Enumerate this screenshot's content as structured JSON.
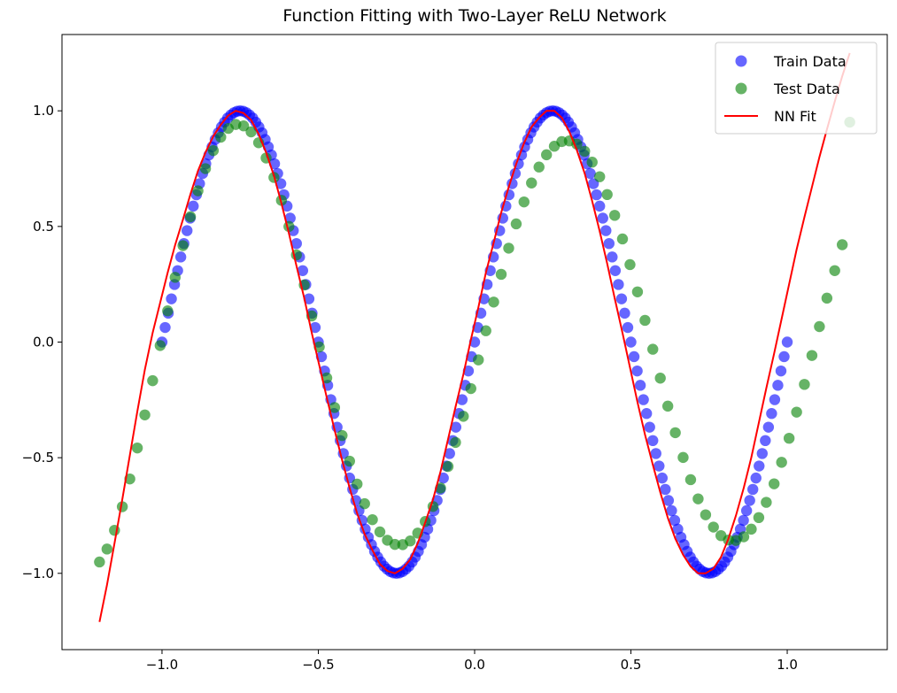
{
  "chart_data": {
    "type": "scatter",
    "title": "Function Fitting with Two-Layer ReLU Network",
    "xlabel": "",
    "ylabel": "",
    "xlim": [
      -1.32,
      1.32
    ],
    "ylim": [
      -1.33,
      1.33
    ],
    "x_ticks": [
      -1.0,
      -0.5,
      0.0,
      0.5,
      1.0
    ],
    "y_ticks": [
      -1.0,
      -0.5,
      0.0,
      0.5,
      1.0
    ],
    "x_tick_labels": [
      "−1.0",
      "−0.5",
      "0.0",
      "0.5",
      "1.0"
    ],
    "y_tick_labels": [
      "−1.0",
      "−0.5",
      "0.0",
      "0.5",
      "1.0"
    ],
    "grid": false,
    "legend_position": "top-right",
    "function": "sin(2πx)",
    "series": [
      {
        "name": "Train Data",
        "kind": "scatter",
        "color": "#0000ff",
        "x_range": [
          -1.0,
          1.0
        ],
        "count": 200,
        "x": [
          -1.0,
          -0.99,
          -0.98,
          -0.97,
          -0.96,
          -0.95,
          -0.94,
          -0.93,
          -0.92,
          -0.91,
          -0.9,
          -0.89,
          -0.88,
          -0.87,
          -0.86,
          -0.85,
          -0.84,
          -0.83,
          -0.82,
          -0.81,
          -0.8,
          -0.79,
          -0.78,
          -0.77,
          -0.76,
          -0.75,
          -0.74,
          -0.73,
          -0.72,
          -0.71,
          -0.7,
          -0.69,
          -0.68,
          -0.67,
          -0.66,
          -0.65,
          -0.64,
          -0.63,
          -0.62,
          -0.61,
          -0.6,
          -0.59,
          -0.58,
          -0.57,
          -0.56,
          -0.55,
          -0.54,
          -0.53,
          -0.52,
          -0.51,
          -0.5,
          -0.49,
          -0.48,
          -0.47,
          -0.46,
          -0.45,
          -0.44,
          -0.43,
          -0.42,
          -0.41,
          -0.4,
          -0.39,
          -0.38,
          -0.37,
          -0.36,
          -0.35,
          -0.34,
          -0.33,
          -0.32,
          -0.31,
          -0.3,
          -0.29,
          -0.28,
          -0.27,
          -0.26,
          -0.25,
          -0.24,
          -0.23,
          -0.22,
          -0.21,
          -0.2,
          -0.19,
          -0.18,
          -0.17,
          -0.16,
          -0.15,
          -0.14,
          -0.13,
          -0.12,
          -0.11,
          -0.1,
          -0.09,
          -0.08,
          -0.07,
          -0.06,
          -0.05,
          -0.04,
          -0.03,
          -0.02,
          -0.01,
          0.0,
          0.01,
          0.02,
          0.03,
          0.04,
          0.05,
          0.06,
          0.07,
          0.08,
          0.09,
          0.1,
          0.11,
          0.12,
          0.13,
          0.14,
          0.15,
          0.16,
          0.17,
          0.18,
          0.19,
          0.2,
          0.21,
          0.22,
          0.23,
          0.24,
          0.25,
          0.26,
          0.27,
          0.28,
          0.29,
          0.3,
          0.31,
          0.32,
          0.33,
          0.34,
          0.35,
          0.36,
          0.37,
          0.38,
          0.39,
          0.4,
          0.41,
          0.42,
          0.43,
          0.44,
          0.45,
          0.46,
          0.47,
          0.48,
          0.49,
          0.5,
          0.51,
          0.52,
          0.53,
          0.54,
          0.55,
          0.56,
          0.57,
          0.58,
          0.59,
          0.6,
          0.61,
          0.62,
          0.63,
          0.64,
          0.65,
          0.66,
          0.67,
          0.68,
          0.69,
          0.7,
          0.71,
          0.72,
          0.73,
          0.74,
          0.75,
          0.76,
          0.77,
          0.78,
          0.79,
          0.8,
          0.81,
          0.82,
          0.83,
          0.84,
          0.85,
          0.86,
          0.87,
          0.88,
          0.89,
          0.9,
          0.91,
          0.92,
          0.93,
          0.94,
          0.95,
          0.96,
          0.97,
          0.98,
          0.99,
          1.0
        ],
        "values": [
          0.0,
          0.063,
          0.125,
          0.187,
          0.249,
          0.309,
          0.368,
          0.426,
          0.482,
          0.536,
          0.588,
          0.637,
          0.685,
          0.729,
          0.771,
          0.809,
          0.844,
          0.876,
          0.905,
          0.93,
          0.951,
          0.969,
          0.982,
          0.992,
          0.998,
          1.0,
          0.998,
          0.992,
          0.982,
          0.969,
          0.951,
          0.93,
          0.905,
          0.876,
          0.844,
          0.809,
          0.771,
          0.729,
          0.685,
          0.637,
          0.588,
          0.536,
          0.482,
          0.426,
          0.368,
          0.309,
          0.249,
          0.187,
          0.125,
          0.063,
          0.0,
          -0.063,
          -0.125,
          -0.187,
          -0.249,
          -0.309,
          -0.368,
          -0.426,
          -0.482,
          -0.536,
          -0.588,
          -0.637,
          -0.685,
          -0.729,
          -0.771,
          -0.809,
          -0.844,
          -0.876,
          -0.905,
          -0.93,
          -0.951,
          -0.969,
          -0.982,
          -0.992,
          -0.998,
          -1.0,
          -0.998,
          -0.992,
          -0.982,
          -0.969,
          -0.951,
          -0.93,
          -0.905,
          -0.876,
          -0.844,
          -0.809,
          -0.771,
          -0.729,
          -0.685,
          -0.637,
          -0.588,
          -0.536,
          -0.482,
          -0.426,
          -0.368,
          -0.309,
          -0.249,
          -0.187,
          -0.125,
          -0.063,
          0.0,
          0.063,
          0.125,
          0.187,
          0.249,
          0.309,
          0.368,
          0.426,
          0.482,
          0.536,
          0.588,
          0.637,
          0.685,
          0.729,
          0.771,
          0.809,
          0.844,
          0.876,
          0.905,
          0.93,
          0.951,
          0.969,
          0.982,
          0.992,
          0.998,
          1.0,
          0.998,
          0.992,
          0.982,
          0.969,
          0.951,
          0.93,
          0.905,
          0.876,
          0.844,
          0.809,
          0.771,
          0.729,
          0.685,
          0.637,
          0.588,
          0.536,
          0.482,
          0.426,
          0.368,
          0.309,
          0.249,
          0.187,
          0.125,
          0.063,
          0.0,
          -0.063,
          -0.125,
          -0.187,
          -0.249,
          -0.309,
          -0.368,
          -0.426,
          -0.482,
          -0.536,
          -0.588,
          -0.637,
          -0.685,
          -0.729,
          -0.771,
          -0.809,
          -0.844,
          -0.876,
          -0.905,
          -0.93,
          -0.951,
          -0.969,
          -0.982,
          -0.992,
          -0.998,
          -1.0,
          -0.998,
          -0.992,
          -0.982,
          -0.969,
          -0.951,
          -0.93,
          -0.905,
          -0.876,
          -0.844,
          -0.809,
          -0.771,
          -0.729,
          -0.685,
          -0.637,
          -0.588,
          -0.536,
          -0.482,
          -0.426,
          -0.368,
          -0.309,
          -0.249,
          -0.187,
          -0.125,
          -0.063,
          0.0
        ]
      },
      {
        "name": "Test Data",
        "kind": "scatter",
        "color": "#008000",
        "x_range": [
          -1.2,
          1.2
        ],
        "count": 100,
        "x": [
          -1.2,
          -1.176,
          -1.152,
          -1.127,
          -1.103,
          -1.079,
          -1.055,
          -1.03,
          -1.006,
          -0.982,
          -0.958,
          -0.933,
          -0.909,
          -0.885,
          -0.861,
          -0.836,
          -0.812,
          -0.788,
          -0.764,
          -0.739,
          -0.715,
          -0.691,
          -0.667,
          -0.642,
          -0.618,
          -0.594,
          -0.57,
          -0.545,
          -0.521,
          -0.497,
          -0.473,
          -0.448,
          -0.424,
          -0.4,
          -0.376,
          -0.352,
          -0.327,
          -0.303,
          -0.279,
          -0.255,
          -0.23,
          -0.206,
          -0.182,
          -0.158,
          -0.133,
          -0.109,
          -0.085,
          -0.061,
          -0.036,
          -0.012,
          0.012,
          0.036,
          0.061,
          0.085,
          0.109,
          0.133,
          0.158,
          0.182,
          0.206,
          0.23,
          0.255,
          0.279,
          0.303,
          0.327,
          0.352,
          0.376,
          0.4,
          0.424,
          0.448,
          0.473,
          0.497,
          0.521,
          0.545,
          0.57,
          0.594,
          0.618,
          0.642,
          0.667,
          0.691,
          0.715,
          0.739,
          0.764,
          0.788,
          0.812,
          0.836,
          0.861,
          0.885,
          0.909,
          0.933,
          0.958,
          0.982,
          1.006,
          1.03,
          1.055,
          1.079,
          1.103,
          1.127,
          1.152,
          1.176,
          1.2
        ],
        "values": [
          -0.951,
          -0.895,
          -0.814,
          -0.712,
          -0.592,
          -0.458,
          -0.315,
          -0.167,
          -0.015,
          0.135,
          0.28,
          0.417,
          0.542,
          0.654,
          0.75,
          0.828,
          0.886,
          0.924,
          0.941,
          0.935,
          0.909,
          0.862,
          0.796,
          0.712,
          0.613,
          0.5,
          0.377,
          0.247,
          0.113,
          -0.021,
          -0.155,
          -0.283,
          -0.404,
          -0.515,
          -0.614,
          -0.699,
          -0.768,
          -0.821,
          -0.857,
          -0.875,
          -0.876,
          -0.86,
          -0.826,
          -0.776,
          -0.711,
          -0.631,
          -0.538,
          -0.434,
          -0.321,
          -0.201,
          -0.077,
          0.049,
          0.173,
          0.293,
          0.406,
          0.511,
          0.606,
          0.688,
          0.757,
          0.81,
          0.847,
          0.867,
          0.87,
          0.856,
          0.825,
          0.778,
          0.715,
          0.638,
          0.548,
          0.446,
          0.335,
          0.217,
          0.094,
          -0.031,
          -0.156,
          -0.277,
          -0.392,
          -0.499,
          -0.595,
          -0.678,
          -0.747,
          -0.8,
          -0.837,
          -0.856,
          -0.858,
          -0.842,
          -0.809,
          -0.759,
          -0.693,
          -0.613,
          -0.52,
          -0.416,
          -0.303,
          -0.183,
          -0.058,
          0.067,
          0.19,
          0.309,
          0.421,
          0.951
        ]
      },
      {
        "name": "NN Fit",
        "kind": "line",
        "color": "#ff0000",
        "x": [
          -1.2,
          -1.176,
          -1.152,
          -1.127,
          -1.103,
          -1.079,
          -1.055,
          -1.03,
          -1.006,
          -0.982,
          -0.958,
          -0.933,
          -0.909,
          -0.885,
          -0.861,
          -0.836,
          -0.812,
          -0.788,
          -0.764,
          -0.739,
          -0.715,
          -0.691,
          -0.667,
          -0.642,
          -0.618,
          -0.594,
          -0.57,
          -0.545,
          -0.521,
          -0.497,
          -0.473,
          -0.448,
          -0.424,
          -0.4,
          -0.376,
          -0.352,
          -0.327,
          -0.303,
          -0.279,
          -0.255,
          -0.23,
          -0.206,
          -0.182,
          -0.158,
          -0.133,
          -0.109,
          -0.085,
          -0.061,
          -0.036,
          -0.012,
          0.012,
          0.036,
          0.061,
          0.085,
          0.109,
          0.133,
          0.158,
          0.182,
          0.206,
          0.23,
          0.255,
          0.279,
          0.303,
          0.327,
          0.352,
          0.376,
          0.4,
          0.424,
          0.448,
          0.473,
          0.497,
          0.521,
          0.545,
          0.57,
          0.594,
          0.618,
          0.642,
          0.667,
          0.691,
          0.715,
          0.739,
          0.764,
          0.788,
          0.812,
          0.836,
          0.861,
          0.885,
          0.909,
          0.933,
          0.958,
          0.982,
          1.006,
          1.03,
          1.055,
          1.079,
          1.103,
          1.127,
          1.152,
          1.176,
          1.2
        ],
        "values": [
          -1.21,
          -1.05,
          -0.87,
          -0.68,
          -0.49,
          -0.3,
          -0.12,
          0.04,
          0.17,
          0.3,
          0.42,
          0.53,
          0.64,
          0.74,
          0.82,
          0.89,
          0.94,
          0.98,
          1.0,
          0.99,
          0.96,
          0.9,
          0.82,
          0.72,
          0.6,
          0.47,
          0.33,
          0.19,
          0.04,
          -0.1,
          -0.24,
          -0.38,
          -0.51,
          -0.63,
          -0.74,
          -0.83,
          -0.9,
          -0.96,
          -0.99,
          -1.0,
          -0.98,
          -0.94,
          -0.87,
          -0.78,
          -0.68,
          -0.56,
          -0.42,
          -0.28,
          -0.14,
          0.01,
          0.15,
          0.3,
          0.43,
          0.56,
          0.67,
          0.77,
          0.86,
          0.93,
          0.97,
          1.0,
          1.0,
          0.97,
          0.91,
          0.83,
          0.73,
          0.61,
          0.48,
          0.34,
          0.19,
          0.04,
          -0.11,
          -0.26,
          -0.4,
          -0.53,
          -0.65,
          -0.76,
          -0.85,
          -0.92,
          -0.97,
          -1.0,
          -1.0,
          -0.98,
          -0.93,
          -0.85,
          -0.75,
          -0.63,
          -0.5,
          -0.35,
          -0.2,
          -0.05,
          0.1,
          0.25,
          0.4,
          0.54,
          0.67,
          0.8,
          0.92,
          1.04,
          1.15,
          1.25
        ]
      }
    ]
  }
}
